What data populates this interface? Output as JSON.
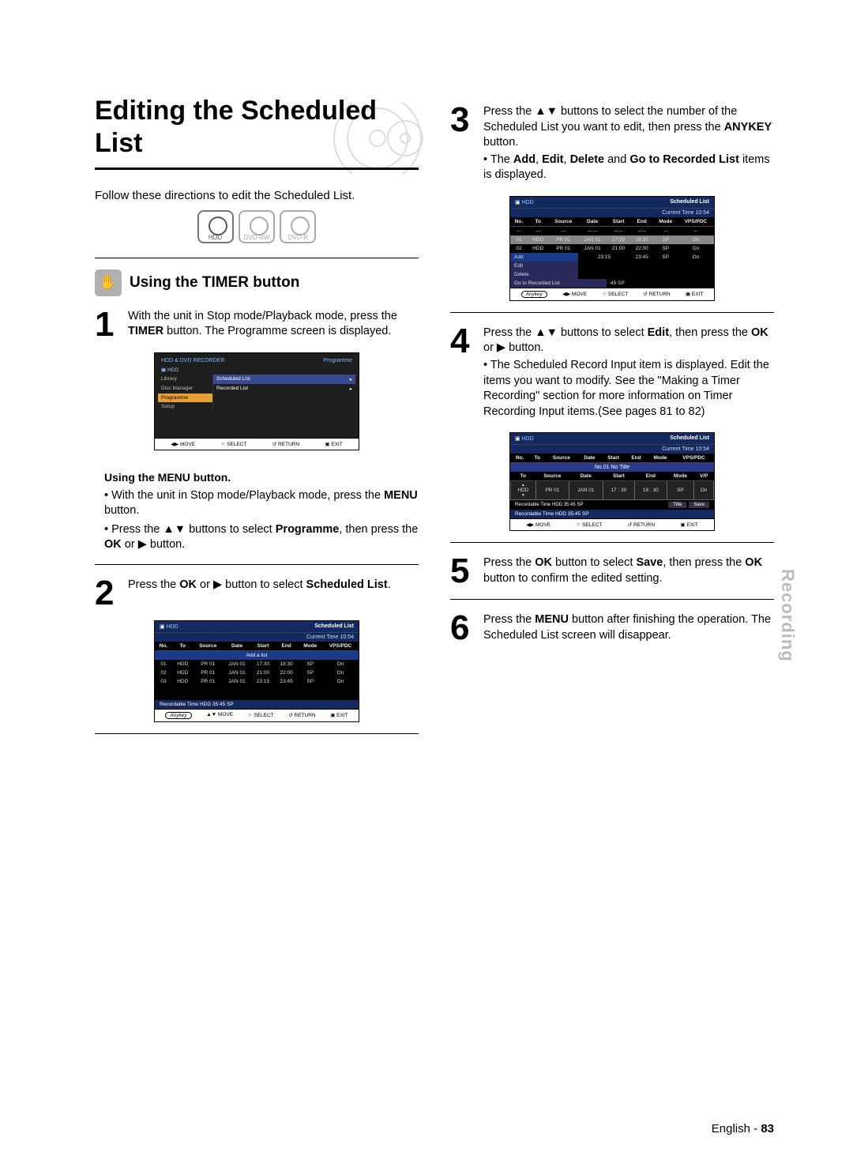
{
  "title": "Editing the Scheduled List",
  "intro": "Follow these directions to edit the Scheduled List.",
  "disc_icons": [
    "HDD",
    "DVD-RW",
    "DVD-R"
  ],
  "section_heading": "Using the TIMER button",
  "section_icon_glyph": "✋",
  "steps": {
    "s1": {
      "num": "1",
      "text": "With the unit in Stop mode/Playback mode, press the <b>TIMER</b> button. The Programme screen is displayed."
    },
    "sub1_head": "Using the MENU button.",
    "sub1_b1": "With the unit in Stop mode/Playback mode, press the <b>MENU</b> button.",
    "sub1_b2": "Press the ▲▼ buttons to select <b>Programme</b>, then press the <b>OK</b> or ▶ button.",
    "s2": {
      "num": "2",
      "text": "Press the <b>OK</b> or ▶ button to select <b>Scheduled List</b>."
    },
    "s3": {
      "num": "3",
      "text": "Press the ▲▼ buttons to select the number of the Scheduled List you want to edit, then press the <b>ANYKEY</b> button.",
      "bullet": "The <b>Add</b>, <b>Edit</b>, <b>Delete</b> and <b>Go to Recorded List</b> items is displayed."
    },
    "s4": {
      "num": "4",
      "text": "Press the ▲▼ buttons to select <b>Edit</b>, then press the <b>OK</b> or ▶ button.",
      "bullet": "The Scheduled Record Input item is displayed. Edit the items you want to modify. See the \"Making a Timer Recording\" section for more information on Timer Recording Input items.(See pages 81 to 82)"
    },
    "s5": {
      "num": "5",
      "text": "Press the <b>OK</b> button to select <b>Save</b>, then press the <b>OK</b> button to confirm the edited setting."
    },
    "s6": {
      "num": "6",
      "text": "Press the <b>MENU</b> button after finishing the operation. The Scheduled List screen will disappear."
    }
  },
  "screens": {
    "sched_title": "Scheduled List",
    "current_time": "Current Time 10:54",
    "columns": [
      "No.",
      "To",
      "Source",
      "Date",
      "Start",
      "End",
      "Mode",
      "VPS/PDC"
    ],
    "rows": [
      [
        "01",
        "HDD",
        "PR 01",
        "JAN 01",
        "17:30",
        "18:30",
        "SP",
        "On"
      ],
      [
        "02",
        "HDD",
        "PR 01",
        "JAN 01",
        "21:00",
        "22:00",
        "SP",
        "On"
      ],
      [
        "03",
        "HDD",
        "PR 01",
        "JAN 01",
        "23:15",
        "23:45",
        "SP",
        "On"
      ]
    ],
    "dashes": [
      "--",
      "---",
      "---",
      "--- --",
      "--:--",
      "--:--",
      "--",
      "--"
    ],
    "add_a_list": "Add a list",
    "rec_time": "Recordable Time    HDD  35:45 SP",
    "rec_time_short": "HDD  35:45 SP",
    "footer": {
      "any": "Anykey",
      "move": "◀▶ MOVE",
      "moveud": "▲▼ MOVE",
      "moveplain": "◀▶ MOVE",
      "select": "☞ SELECT",
      "return": "↺ RETURN",
      "exit": "▣ EXIT"
    },
    "prog_menu": {
      "header": "HDD & DVD RECORDER",
      "right_label": "Programme",
      "hdd": "HDD",
      "items": [
        "Library",
        "Disc Manager",
        "Programme",
        "Setup"
      ],
      "options": [
        "Scheduled List",
        "Recorded List"
      ]
    },
    "anykey_menu": [
      "Add",
      "Edit",
      "Delete",
      "Go to Recorded List"
    ],
    "no01": "No.01  No Title",
    "edit_cols": [
      "To",
      "Source",
      "Date",
      "Start",
      "End",
      "Mode",
      "V/P"
    ],
    "edit_vals": [
      "HDD",
      "PR 01",
      "JAN 01",
      "17 : 30",
      "18 : 30",
      "SP",
      "On"
    ],
    "title_btn": "Title",
    "save_btn": "Save",
    "rec_time2": "Recordable Time   HDD   35:45 SP"
  },
  "side_tab": "Recording",
  "page_label": "English - ",
  "page_number": "83",
  "colors": {
    "blue": "#13295f",
    "grey_icon": "#b0b0b0"
  }
}
